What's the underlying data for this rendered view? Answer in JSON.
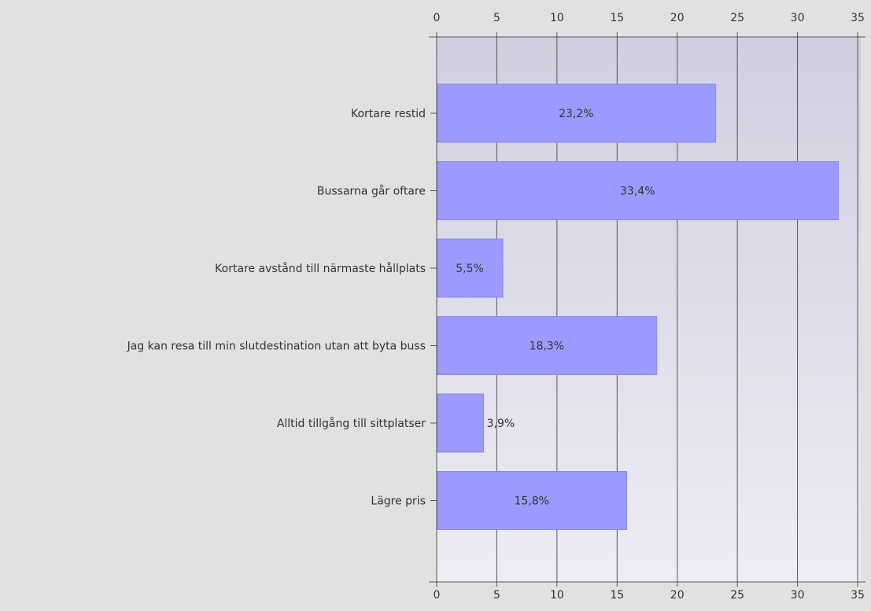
{
  "chart_data": {
    "type": "bar",
    "orientation": "horizontal",
    "categories": [
      "Kortare restid",
      "Bussarna går oftare",
      "Kortare avstånd till närmaste hållplats",
      "Jag kan resa till min slutdestination utan att byta buss",
      "Alltid tillgång till sittplatser",
      "Lägre pris"
    ],
    "values": [
      23.2,
      33.4,
      5.5,
      18.3,
      3.9,
      15.8
    ],
    "data_labels": [
      "23,2%",
      "33,4%",
      "5,5%",
      "18,3%",
      "3,9%",
      "15,8%"
    ],
    "x_ticks": [
      "0",
      "5",
      "10",
      "15",
      "20",
      "25",
      "30",
      "35"
    ],
    "xlim": [
      0,
      35
    ],
    "grid": true,
    "axis_positions": "top-and-bottom",
    "colors": {
      "bar": "#9b9bff",
      "bar_edge": "#8a8ae6",
      "plot_bg_top": "#cfcfe0",
      "plot_bg_bottom": "#ededf5",
      "page_bg": "#e1e1e3",
      "gridline": "#555555"
    }
  }
}
